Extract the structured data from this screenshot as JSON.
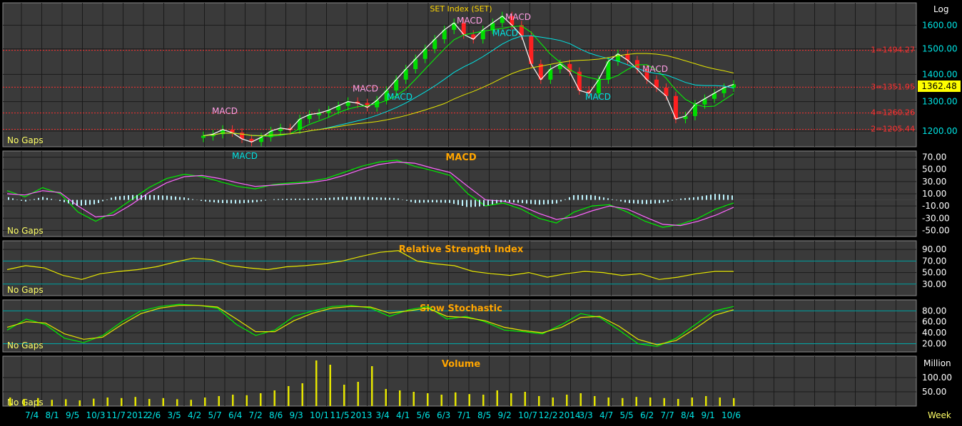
{
  "chart_data": {
    "type": "line",
    "title": "SET Index (SET)",
    "scale_label": "Log",
    "interval_label": "Week",
    "gaps_label": "No Gaps",
    "last_price": "1362.48",
    "x_tick_labels": [
      "7/4",
      "8/1",
      "9/5",
      "10/3",
      "11/7",
      "2012",
      "2/6",
      "3/5",
      "4/2",
      "5/7",
      "6/4",
      "7/2",
      "8/6",
      "9/3",
      "10/1",
      "11/5",
      "2013",
      "3/4",
      "4/1",
      "5/6",
      "6/3",
      "7/1",
      "8/5",
      "9/2",
      "10/7",
      "12/2",
      "2014",
      "3/3",
      "4/7",
      "5/5",
      "6/2",
      "7/7",
      "8/4",
      "9/1",
      "10/6"
    ],
    "price_panel": {
      "y_ticks": [
        "1600.00",
        "1500.00",
        "1400.00",
        "1300.00",
        "1200.00"
      ],
      "levels": [
        {
          "label": "1=1494.27",
          "value": 1494.27
        },
        {
          "label": "3=1351.95",
          "value": 1351.95
        },
        {
          "label": "4=1260.26",
          "value": 1260.26
        },
        {
          "label": "2=1205.44",
          "value": 1205.44
        }
      ],
      "annotations": [
        "MACD",
        "MACD",
        "MACD",
        "MACD",
        "MACD",
        "MACD",
        "MACD",
        "MACD",
        "MACD"
      ],
      "close_path": [
        1185,
        1190,
        1205,
        1195,
        1175,
        1165,
        1180,
        1200,
        1210,
        1205,
        1240,
        1255,
        1260,
        1270,
        1285,
        1300,
        1295,
        1280,
        1305,
        1340,
        1380,
        1420,
        1460,
        1500,
        1540,
        1580,
        1610,
        1560,
        1540,
        1580,
        1610,
        1640,
        1600,
        1555,
        1440,
        1380,
        1420,
        1440,
        1410,
        1340,
        1330,
        1380,
        1450,
        1480,
        1455,
        1420,
        1380,
        1350,
        1320,
        1240,
        1250,
        1290,
        1310,
        1330,
        1350,
        1362.48
      ]
    },
    "panels": [
      {
        "title": "MACD",
        "y_ticks": [
          "70.00",
          "50.00",
          "30.00",
          "10.00",
          "-10.00",
          "-30.00",
          "-50.00"
        ],
        "series": [
          {
            "name": "",
            "values": [
              15,
              5,
              20,
              10,
              -20,
              -35,
              -20,
              0,
              20,
              35,
              42,
              38,
              30,
              22,
              18,
              25,
              28,
              30,
              35,
              45,
              55,
              62,
              65,
              55,
              48,
              40,
              10,
              -10,
              -5,
              -15,
              -30,
              -38,
              -20,
              -10,
              -8,
              -20,
              -35,
              -45,
              -40,
              -30,
              -15,
              -5
            ]
          },
          {
            "name": "",
            "values": [
              10,
              8,
              15,
              12,
              -10,
              -28,
              -25,
              -8,
              12,
              28,
              38,
              40,
              35,
              28,
              22,
              24,
              26,
              28,
              32,
              40,
              50,
              58,
              62,
              60,
              52,
              45,
              22,
              0,
              -2,
              -10,
              -22,
              -32,
              -28,
              -18,
              -10,
              -15,
              -28,
              -40,
              -42,
              -35,
              -25,
              -12
            ]
          }
        ]
      },
      {
        "title": "Relative Strength Index",
        "y_ticks": [
          "90.00",
          "70.00",
          "50.00",
          "30.00"
        ],
        "series": [
          {
            "name": "",
            "values": [
              55,
              62,
              58,
              45,
              38,
              48,
              52,
              55,
              60,
              68,
              75,
              72,
              62,
              58,
              55,
              60,
              62,
              65,
              70,
              78,
              85,
              88,
              70,
              65,
              62,
              52,
              48,
              45,
              50,
              42,
              48,
              52,
              50,
              45,
              48,
              38,
              42,
              48,
              52,
              52
            ]
          }
        ]
      },
      {
        "title": "Slow Stochastic",
        "y_ticks": [
          "80.00",
          "60.00",
          "40.00",
          "20.00"
        ],
        "series": [
          {
            "name": "",
            "values": [
              45,
              65,
              55,
              30,
              22,
              35,
              60,
              80,
              88,
              92,
              90,
              85,
              55,
              35,
              45,
              70,
              80,
              88,
              90,
              85,
              70,
              82,
              88,
              65,
              70,
              60,
              45,
              42,
              38,
              55,
              75,
              68,
              45,
              20,
              15,
              30,
              55,
              80,
              88
            ]
          },
          {
            "name": "",
            "values": [
              50,
              60,
              58,
              38,
              28,
              32,
              55,
              75,
              85,
              90,
              90,
              87,
              65,
              42,
              42,
              62,
              76,
              85,
              88,
              87,
              76,
              80,
              85,
              70,
              68,
              62,
              50,
              44,
              40,
              50,
              68,
              70,
              52,
              28,
              18,
              26,
              48,
              72,
              82
            ]
          }
        ]
      },
      {
        "title": "Volume",
        "unit_label": "Million",
        "y_ticks": [
          "100.00",
          "50.00"
        ],
        "values": [
          30,
          25,
          28,
          22,
          24,
          20,
          26,
          30,
          28,
          32,
          25,
          28,
          24,
          22,
          30,
          35,
          40,
          38,
          45,
          55,
          70,
          80,
          160,
          145,
          75,
          85,
          140,
          60,
          55,
          50,
          45,
          40,
          48,
          42,
          40,
          55,
          45,
          50,
          35,
          30,
          40,
          45,
          35,
          30,
          28,
          32,
          30,
          28,
          25,
          30,
          35,
          30,
          28
        ]
      }
    ]
  }
}
